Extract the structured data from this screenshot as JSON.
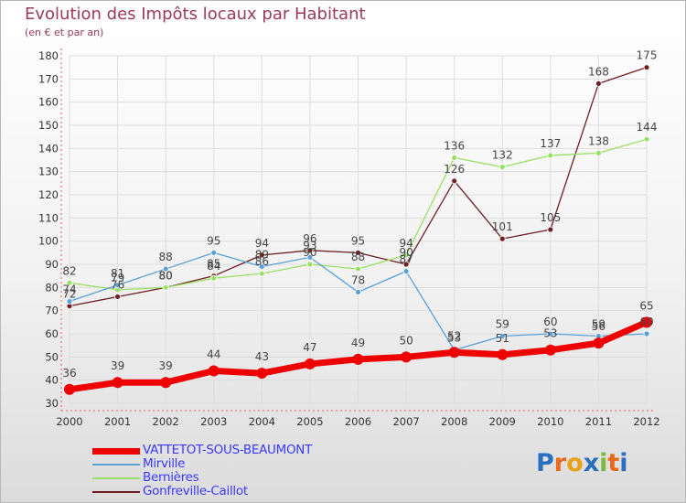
{
  "header": {
    "title": "Evolution des Impôts locaux par Habitant",
    "subtitle": "(en € et par an)"
  },
  "chart_data": {
    "type": "line",
    "title": "Evolution des Impôts locaux par Habitant",
    "subtitle": "(en € et par an)",
    "xlabel": "",
    "ylabel": "",
    "ylim": [
      30,
      180
    ],
    "yticks": [
      30,
      40,
      50,
      60,
      70,
      80,
      90,
      100,
      110,
      120,
      130,
      140,
      150,
      160,
      170,
      180
    ],
    "grid": true,
    "legend_position": "bottom-left",
    "x": [
      "2000",
      "2001",
      "2002",
      "2003",
      "2004",
      "2005",
      "2006",
      "2007",
      "2008",
      "2009",
      "2010",
      "2011",
      "2012"
    ],
    "series": [
      {
        "name": "VATTETOT-SOUS-BEAUMONT",
        "color": "#ee0000",
        "values": [
          36,
          39,
          39,
          44,
          43,
          47,
          49,
          50,
          52,
          51,
          53,
          56,
          65
        ]
      },
      {
        "name": "Mirville",
        "color": "#5aa0d8",
        "values": [
          74,
          81,
          88,
          95,
          89,
          93,
          78,
          87,
          53,
          59,
          60,
          59,
          60
        ]
      },
      {
        "name": "Bernières",
        "color": "#99e066",
        "values": [
          82,
          79,
          80,
          84,
          86,
          90,
          88,
          94,
          136,
          132,
          137,
          138,
          144
        ]
      },
      {
        "name": "Gonfreville-Caillot",
        "color": "#6e1e24",
        "values": [
          72,
          76,
          80,
          85,
          94,
          96,
          95,
          90,
          126,
          101,
          105,
          168,
          175
        ]
      }
    ]
  },
  "branding": {
    "logo_letters": [
      "P",
      "r",
      "o",
      "x",
      "i",
      "t",
      "i"
    ],
    "logo_colors": [
      "#2a6fc0",
      "#e86a1a",
      "#e8a21a",
      "#2a6fc0",
      "#7ab840",
      "#e86a1a",
      "#2a6fc0"
    ]
  }
}
